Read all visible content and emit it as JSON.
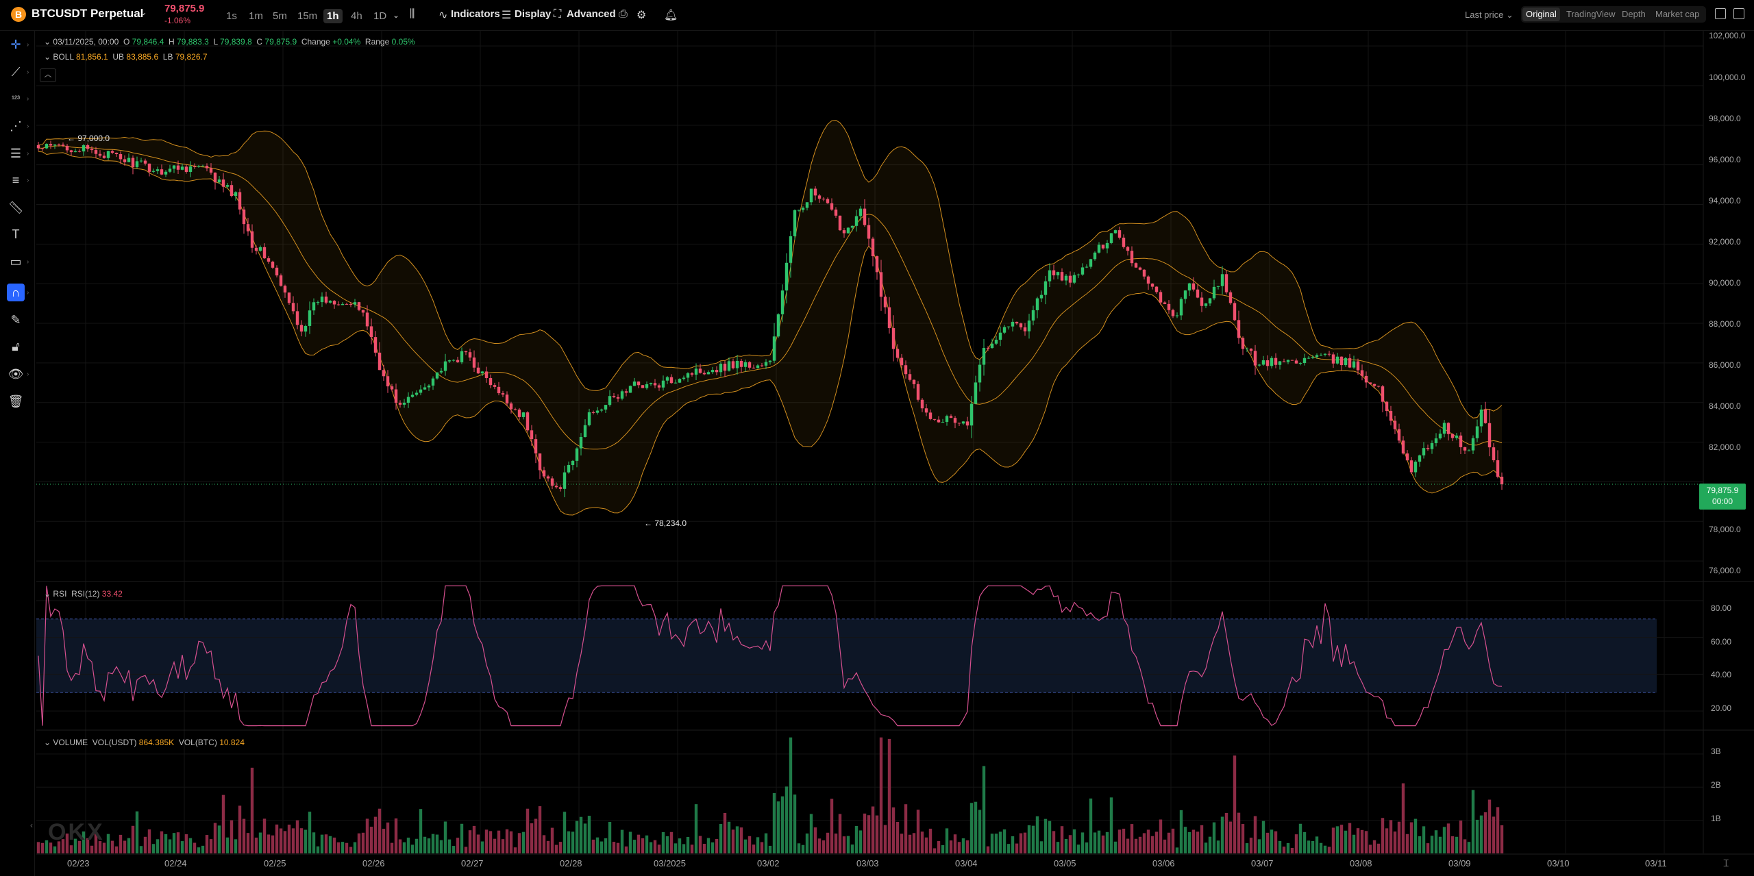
{
  "header": {
    "coin_glyph": "B",
    "symbol": "BTCUSDT Perpetual",
    "last_price": "79,875.9",
    "change_pct": "-1.06%",
    "timeframes": [
      "1s",
      "1m",
      "5m",
      "15m",
      "1h",
      "4h",
      "1D"
    ],
    "active_timeframe": "1h",
    "indicators_label": "Indicators",
    "display_label": "Display",
    "advanced_label": "Advanced",
    "price_source": "Last price",
    "view_tabs": [
      "Original",
      "TradingView",
      "Depth",
      "Market cap"
    ],
    "active_view": "Original"
  },
  "ohlc": {
    "date": "03/11/2025, 00:00",
    "o_label": "O",
    "open": "79,846.4",
    "h_label": "H",
    "high": "79,883.3",
    "l_label": "L",
    "low": "79,839.8",
    "c_label": "C",
    "close": "79,875.9",
    "change_label": "Change",
    "change": "+0.04%",
    "range_label": "Range",
    "range": "0.05%"
  },
  "boll": {
    "name": "BOLL",
    "mid": "81,856.1",
    "ub_label": "UB",
    "ub": "83,885.6",
    "lb_label": "LB",
    "lb": "79,826.7"
  },
  "rsi": {
    "name": "RSI",
    "label": "RSI(12)",
    "value": "33.42"
  },
  "volume": {
    "name": "VOLUME",
    "usdt_label": "VOL(USDT)",
    "usdt": "864.385K",
    "btc_label": "VOL(BTC)",
    "btc": "10.824"
  },
  "annotations": {
    "high": "97,000.0",
    "low": "78,234.0"
  },
  "price_tag": {
    "price": "79,875.9",
    "countdown": "00:00"
  },
  "price_axis": [
    "102,000.0",
    "100,000.0",
    "98,000.0",
    "96,000.0",
    "94,000.0",
    "92,000.0",
    "90,000.0",
    "88,000.0",
    "86,000.0",
    "84,000.0",
    "82,000.0",
    "78,000.0",
    "76,000.0"
  ],
  "rsi_axis": [
    "80.00",
    "60.00",
    "40.00",
    "20.00"
  ],
  "vol_axis": [
    "3B",
    "2B",
    "1B"
  ],
  "time_axis": [
    "02/23",
    "02/24",
    "02/25",
    "02/26",
    "02/27",
    "02/28",
    "03/2025",
    "03/02",
    "03/03",
    "03/04",
    "03/05",
    "03/06",
    "03/07",
    "03/08",
    "03/09",
    "03/10",
    "03/11"
  ],
  "watermark": "OKX",
  "colors": {
    "up": "#2fc46c",
    "down": "#f0506e",
    "band": "#f5a623",
    "rsi_line": "#d6508f",
    "rsi_zone": "#0d1626",
    "accent": "#2965ff"
  },
  "chart_data": {
    "type": "candlestick",
    "interval": "1h",
    "x_range": [
      "02/22",
      "03/11"
    ],
    "price_range": [
      75000,
      102800
    ],
    "close_path": [
      [
        0,
        96800
      ],
      [
        6,
        96950
      ],
      [
        12,
        96700
      ],
      [
        17,
        96500
      ],
      [
        24,
        96050
      ],
      [
        29,
        95700
      ],
      [
        35,
        95900
      ],
      [
        40,
        95850
      ],
      [
        43,
        95250
      ],
      [
        48,
        94450
      ],
      [
        52,
        92050
      ],
      [
        56,
        91200
      ],
      [
        60,
        89400
      ],
      [
        64,
        87700
      ],
      [
        68,
        89200
      ],
      [
        74,
        89150
      ],
      [
        79,
        88600
      ],
      [
        84,
        85200
      ],
      [
        88,
        83800
      ],
      [
        92,
        84500
      ],
      [
        98,
        85700
      ],
      [
        104,
        86500
      ],
      [
        108,
        85400
      ],
      [
        112,
        84400
      ],
      [
        118,
        83300
      ],
      [
        122,
        80800
      ],
      [
        126,
        79500
      ],
      [
        130,
        81000
      ],
      [
        134,
        83500
      ],
      [
        140,
        84200
      ],
      [
        146,
        85000
      ],
      [
        150,
        84800
      ],
      [
        158,
        85500
      ],
      [
        166,
        85800
      ],
      [
        170,
        86000
      ],
      [
        174,
        85800
      ],
      [
        178,
        86000
      ],
      [
        184,
        93500
      ],
      [
        188,
        94600
      ],
      [
        192,
        93900
      ],
      [
        196,
        92600
      ],
      [
        200,
        93700
      ],
      [
        204,
        90500
      ],
      [
        208,
        86800
      ],
      [
        212,
        85300
      ],
      [
        216,
        83400
      ],
      [
        222,
        83100
      ],
      [
        226,
        82900
      ],
      [
        230,
        86800
      ],
      [
        236,
        88000
      ],
      [
        240,
        87800
      ],
      [
        246,
        90500
      ],
      [
        252,
        90200
      ],
      [
        256,
        91200
      ],
      [
        262,
        92800
      ],
      [
        266,
        91200
      ],
      [
        272,
        89600
      ],
      [
        276,
        88200
      ],
      [
        280,
        89900
      ],
      [
        284,
        88800
      ],
      [
        288,
        90400
      ],
      [
        292,
        87200
      ],
      [
        296,
        86100
      ],
      [
        302,
        86000
      ],
      [
        312,
        86300
      ],
      [
        320,
        85900
      ],
      [
        326,
        84600
      ],
      [
        330,
        82700
      ],
      [
        334,
        80600
      ],
      [
        338,
        81800
      ],
      [
        342,
        82800
      ],
      [
        348,
        81400
      ],
      [
        351,
        83600
      ],
      [
        354,
        81000
      ],
      [
        356,
        79876
      ]
    ],
    "annotated_high": 97000,
    "annotated_low": 78234,
    "bollinger": {
      "upper": 83885.6,
      "middle": 81856.1,
      "lower": 79826.7
    },
    "rsi": {
      "period": 12,
      "last": 33.42,
      "bands": [
        30,
        70
      ],
      "range": [
        10,
        90
      ]
    },
    "volume": {
      "last_usdt": "864.385K",
      "last_btc": "10.824",
      "range": [
        0,
        3700000000
      ]
    }
  }
}
